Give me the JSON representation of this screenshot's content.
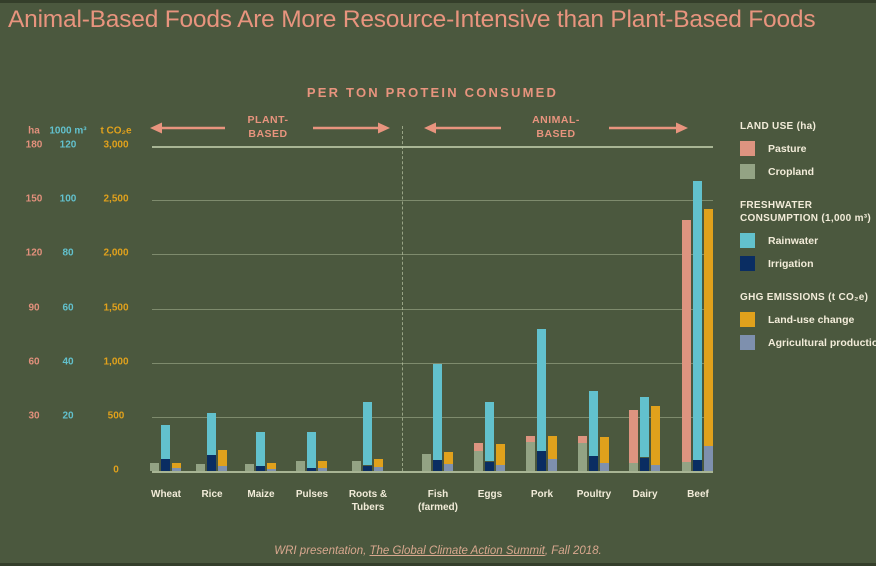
{
  "page": {
    "title": "Animal-Based Foods Are More Resource-Intensive than Plant-Based Foods",
    "footer": {
      "prefix": "WRI presentation, ",
      "link_text": "The Global Climate Action Summit",
      "suffix": ", Fall 2018."
    }
  },
  "colors": {
    "background": "#4b583e",
    "title_salmon": "#e8947e",
    "text_cream": "#f2ecd9",
    "gridline": "#a9b694",
    "axis_land": "#e2907c",
    "axis_water": "#62c1cd",
    "axis_ghg": "#e0a11c",
    "pasture": "#dd9480",
    "cropland": "#93a384",
    "rainwater": "#62c1cd",
    "irrigation": "#0a2d62",
    "land_use_change": "#e0a11c",
    "agricultural_production": "#7e90ae",
    "footer_text": "#d9a88f"
  },
  "chart_data": {
    "type": "bar",
    "title": "PER TON PROTEIN CONSUMED",
    "note": "Grouped stacked bars; each food has three bars read against three different y-axes (land ha, freshwater 1,000 m3, GHG t CO2e). Values estimated from pixel heights.",
    "section_arrows": {
      "plant_line1": "PLANT-",
      "plant_line2": "BASED",
      "animal_line1": "ANIMAL-",
      "animal_line2": "BASED"
    },
    "categories": [
      "Wheat",
      "Rice",
      "Maize",
      "Pulses",
      "Roots & Tubers",
      "Fish (farmed)",
      "Eggs",
      "Pork",
      "Poultry",
      "Dairy",
      "Beef"
    ],
    "plant_categories": [
      "Wheat",
      "Rice",
      "Maize",
      "Pulses",
      "Roots & Tubers"
    ],
    "animal_categories": [
      "Fish (farmed)",
      "Eggs",
      "Pork",
      "Poultry",
      "Dairy",
      "Beef"
    ],
    "axes": [
      {
        "id": "land",
        "header": "ha",
        "color": "#e2907c",
        "max": 180,
        "min": 0,
        "ticks": [
          "180",
          "150",
          "120",
          "90",
          "60",
          "30"
        ]
      },
      {
        "id": "water",
        "header": "1000 m³",
        "color": "#62c1cd",
        "max": 120,
        "min": 0,
        "ticks": [
          "120",
          "100",
          "80",
          "60",
          "40",
          "20"
        ]
      },
      {
        "id": "ghg",
        "header": "t CO₂e",
        "color": "#e0a11c",
        "max": 3000,
        "min": 0,
        "ticks": [
          "3,000",
          "2,500",
          "2,000",
          "1,500",
          "1,000",
          "500",
          "0"
        ]
      }
    ],
    "series": [
      {
        "name": "Pasture",
        "group": "Land use (ha)",
        "axis": "land",
        "color": "#dd9480",
        "values": [
          0,
          0,
          0,
          0,
          0,
          0,
          4.5,
          3.5,
          4,
          29.5,
          134
        ]
      },
      {
        "name": "Cropland",
        "group": "Land use (ha)",
        "axis": "land",
        "color": "#93a384",
        "values": [
          4.5,
          4,
          4,
          5.5,
          5.5,
          9.5,
          11,
          16,
          15.5,
          4.5,
          5
        ]
      },
      {
        "name": "Rainwater",
        "group": "Freshwater consumption (1,000 m³)",
        "axis": "water",
        "color": "#62c1cd",
        "values": [
          12.5,
          15.5,
          12.5,
          13.5,
          23.5,
          35.5,
          22,
          45,
          24,
          22.5,
          103
        ]
      },
      {
        "name": "Irrigation",
        "group": "Freshwater consumption (1,000 m³)",
        "axis": "water",
        "color": "#0a2d62",
        "values": [
          4.5,
          6,
          2,
          1,
          2,
          4,
          3.5,
          7.5,
          5.5,
          5,
          4
        ]
      },
      {
        "name": "Land-use change",
        "group": "GHG emissions (t CO₂e)",
        "axis": "ghg",
        "color": "#e0a11c",
        "values": [
          50,
          145,
          55,
          60,
          80,
          115,
          195,
          210,
          240,
          545,
          2190
        ]
      },
      {
        "name": "Agricultural production",
        "group": "GHG emissions (t CO₂e)",
        "axis": "ghg",
        "color": "#7e90ae",
        "values": [
          25,
          45,
          18,
          30,
          34,
          65,
          55,
          115,
          75,
          55,
          230
        ]
      }
    ],
    "legend": {
      "position": "right",
      "sections": [
        {
          "title": "LAND USE (ha)",
          "items": [
            {
              "label": "Pasture",
              "color": "#dd9480"
            },
            {
              "label": "Cropland",
              "color": "#93a384"
            }
          ]
        },
        {
          "title": "FRESHWATER CONSUMPTION (1,000 m³)",
          "items": [
            {
              "label": "Rainwater",
              "color": "#62c1cd"
            },
            {
              "label": "Irrigation",
              "color": "#0a2d62"
            }
          ]
        },
        {
          "title": "GHG EMISSIONS (t CO₂e)",
          "items": [
            {
              "label": "Land-use change",
              "color": "#e0a11c"
            },
            {
              "label": "Agricultural production",
              "color": "#7e90ae"
            }
          ]
        }
      ]
    },
    "grid": true
  }
}
